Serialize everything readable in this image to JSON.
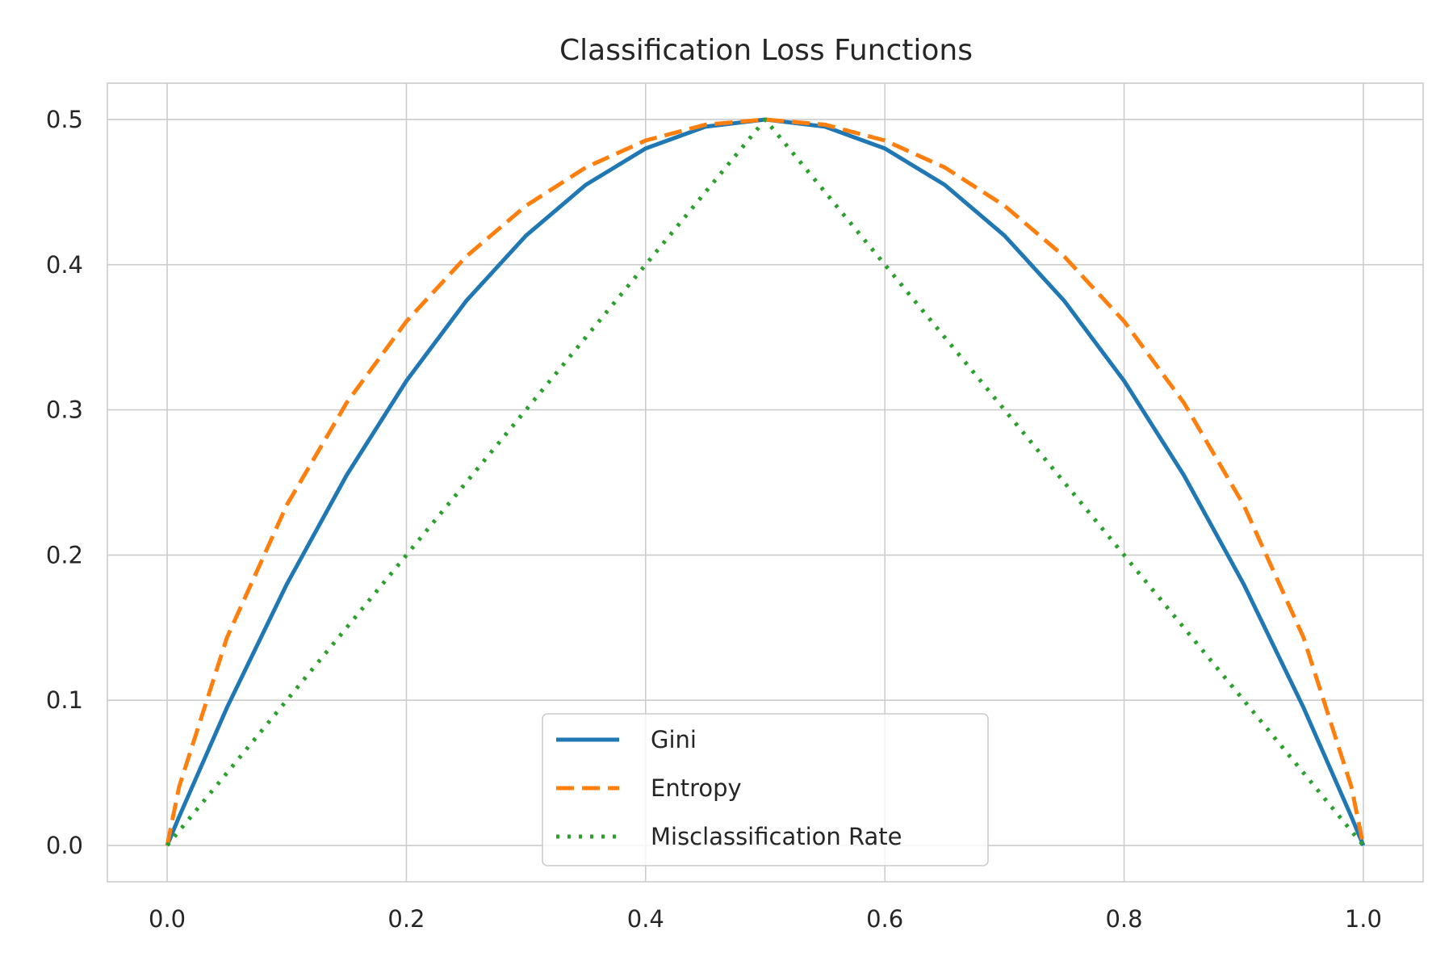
{
  "chart_data": {
    "type": "line",
    "title": "Classification Loss Functions",
    "xlabel": "",
    "ylabel": "",
    "xlim": [
      -0.05,
      1.05
    ],
    "ylim": [
      -0.025,
      0.525
    ],
    "x_ticks": [
      0.0,
      0.2,
      0.4,
      0.6,
      0.8,
      1.0
    ],
    "x_tick_labels": [
      "0.0",
      "0.2",
      "0.4",
      "0.6",
      "0.8",
      "1.0"
    ],
    "y_ticks": [
      0.0,
      0.1,
      0.2,
      0.3,
      0.4,
      0.5
    ],
    "y_tick_labels": [
      "0.0",
      "0.1",
      "0.2",
      "0.3",
      "0.4",
      "0.5"
    ],
    "grid": true,
    "legend_position": "lower center",
    "x": [
      0.0,
      0.01,
      0.05,
      0.1,
      0.15,
      0.2,
      0.25,
      0.3,
      0.35,
      0.4,
      0.45,
      0.5,
      0.55,
      0.6,
      0.65,
      0.7,
      0.75,
      0.8,
      0.85,
      0.9,
      0.95,
      0.99,
      1.0
    ],
    "series": [
      {
        "name": "Gini",
        "color": "#1f77b4",
        "dash": "solid",
        "values": [
          0.0,
          0.0198,
          0.095,
          0.18,
          0.255,
          0.32,
          0.375,
          0.42,
          0.455,
          0.48,
          0.495,
          0.5,
          0.495,
          0.48,
          0.455,
          0.42,
          0.375,
          0.32,
          0.255,
          0.18,
          0.095,
          0.0198,
          0.0
        ]
      },
      {
        "name": "Entropy",
        "color": "#ff7f0e",
        "dash": "dashed",
        "values": [
          0.0,
          0.0404,
          0.1432,
          0.2345,
          0.3049,
          0.361,
          0.4056,
          0.4406,
          0.467,
          0.4855,
          0.4964,
          0.5,
          0.4964,
          0.4855,
          0.467,
          0.4406,
          0.4056,
          0.361,
          0.3049,
          0.2345,
          0.1432,
          0.0404,
          0.0
        ]
      },
      {
        "name": "Misclassification Rate",
        "color": "#2ca02c",
        "dash": "dotted",
        "values": [
          0.0,
          0.01,
          0.05,
          0.1,
          0.15,
          0.2,
          0.25,
          0.3,
          0.35,
          0.4,
          0.45,
          0.5,
          0.45,
          0.4,
          0.35,
          0.3,
          0.25,
          0.2,
          0.15,
          0.1,
          0.05,
          0.01,
          0.0
        ]
      }
    ]
  }
}
